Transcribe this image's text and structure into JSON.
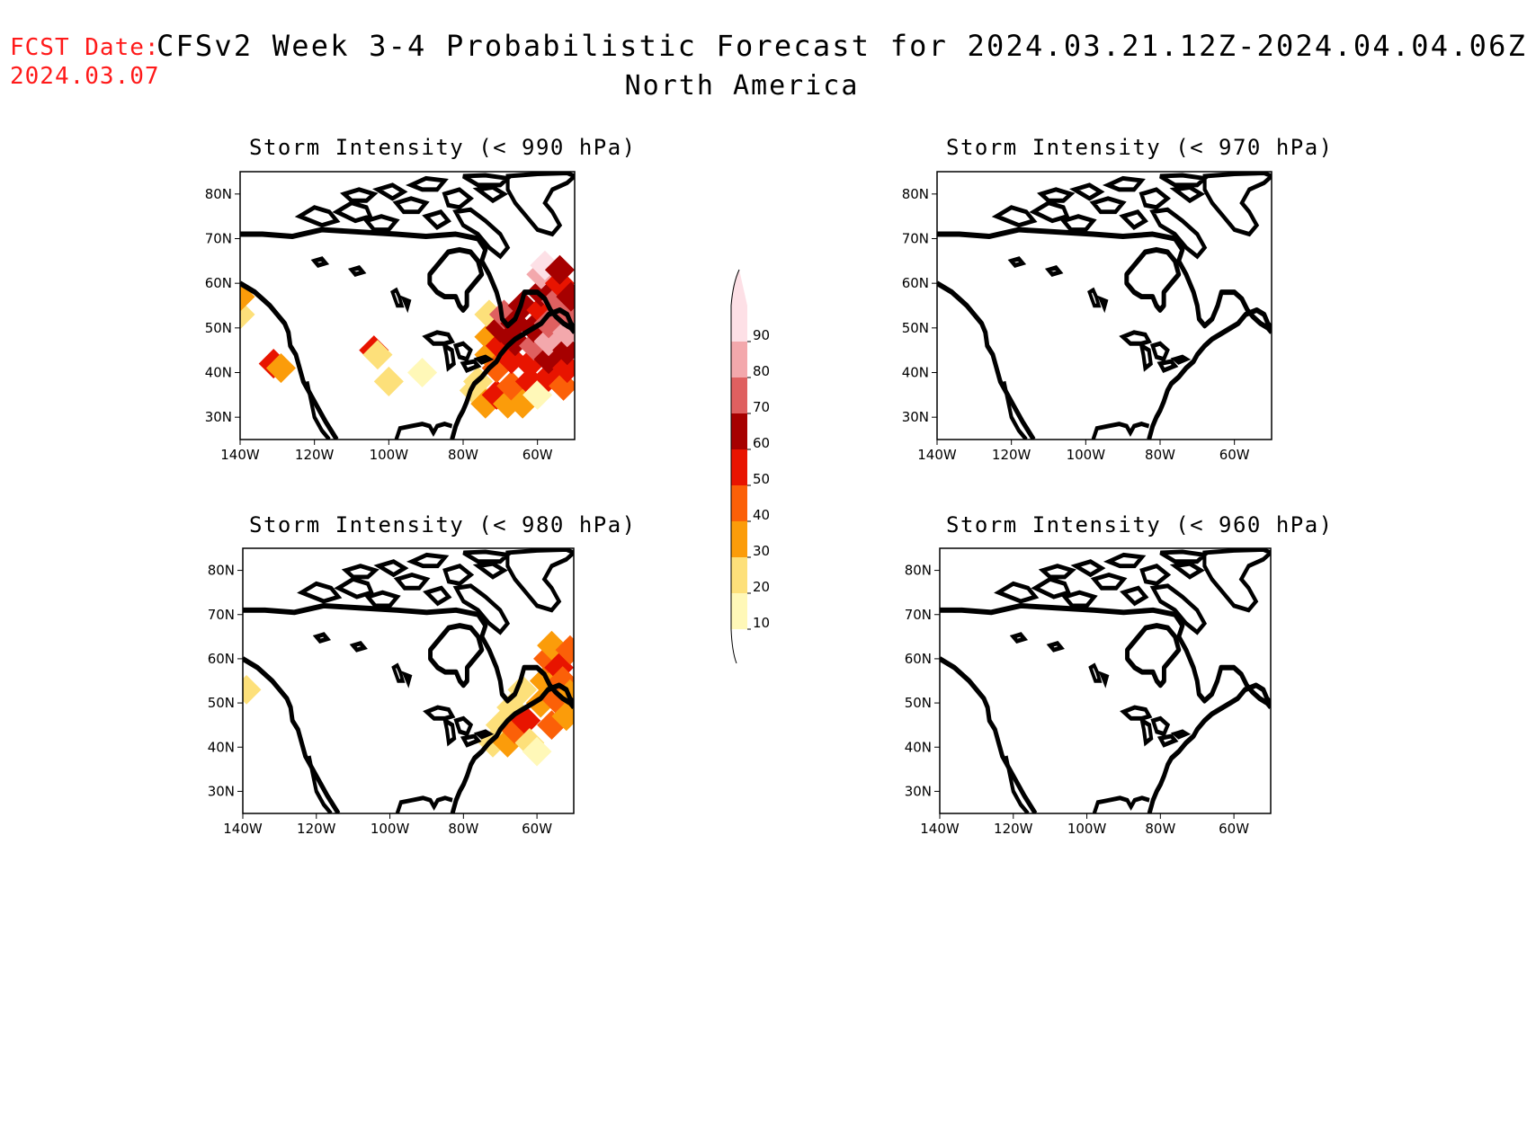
{
  "header": {
    "fcst_label": "FCST Date:",
    "fcst_date": "2024.03.07",
    "title": "CFSv2 Week 3-4 Probabilistic Forecast for 2024.03.21.12Z-2024.04.04.06Z",
    "subtitle": "North America"
  },
  "map": {
    "lon_range": [
      -140,
      -50
    ],
    "lat_range": [
      25,
      85
    ],
    "lat_ticks": [
      30,
      40,
      50,
      60,
      70,
      80
    ],
    "lat_tick_labels": [
      "30N",
      "40N",
      "50N",
      "60N",
      "70N",
      "80N"
    ],
    "lon_ticks": [
      -140,
      -120,
      -100,
      -80,
      -60
    ],
    "lon_tick_labels": [
      "140W",
      "120W",
      "100W",
      "80W",
      "60W"
    ]
  },
  "colorbar": {
    "levels": [
      10,
      20,
      30,
      40,
      50,
      60,
      70,
      80,
      90
    ],
    "labels": [
      "10",
      "20",
      "30",
      "40",
      "50",
      "60",
      "70",
      "80",
      "90"
    ],
    "colors": [
      "#fff8b8",
      "#fde07a",
      "#fb9c0a",
      "#fb6008",
      "#e81400",
      "#a60000",
      "#df6060",
      "#f3a8ac",
      "#fde0e6"
    ]
  },
  "panels": [
    {
      "id": "990",
      "title": "Storm Intensity (< 990 hPa)",
      "cells": [
        [
          -140,
          53,
          20
        ],
        [
          -140,
          57,
          30
        ],
        [
          -131,
          42,
          50
        ],
        [
          -129,
          41,
          30
        ],
        [
          -104,
          45,
          50
        ],
        [
          -103,
          44,
          20
        ],
        [
          -100,
          38,
          20
        ],
        [
          -91,
          40,
          10
        ],
        [
          -77,
          36,
          20
        ],
        [
          -76,
          38,
          20
        ],
        [
          -74,
          33,
          30
        ],
        [
          -73,
          44,
          30
        ],
        [
          -73,
          48,
          30
        ],
        [
          -73,
          53,
          20
        ],
        [
          -71,
          35,
          50
        ],
        [
          -71,
          41,
          40
        ],
        [
          -70,
          46,
          50
        ],
        [
          -70,
          50,
          60
        ],
        [
          -69,
          53,
          70
        ],
        [
          -68,
          33,
          30
        ],
        [
          -67,
          37,
          40
        ],
        [
          -67,
          43,
          50
        ],
        [
          -66,
          47,
          60
        ],
        [
          -66,
          51,
          60
        ],
        [
          -64,
          55,
          60
        ],
        [
          -64,
          33,
          30
        ],
        [
          -62,
          38,
          50
        ],
        [
          -62,
          42,
          50
        ],
        [
          -61,
          46,
          70
        ],
        [
          -61,
          50,
          60
        ],
        [
          -59,
          54,
          50
        ],
        [
          -59,
          58,
          60
        ],
        [
          -59,
          62,
          80
        ],
        [
          -58,
          64,
          90
        ],
        [
          -60,
          35,
          10
        ],
        [
          -57,
          39,
          50
        ],
        [
          -57,
          43,
          60
        ],
        [
          -57,
          47,
          80
        ],
        [
          -57,
          51,
          70
        ],
        [
          -55,
          56,
          70
        ],
        [
          -54,
          60,
          50
        ],
        [
          -54,
          63,
          60
        ],
        [
          -53,
          37,
          40
        ],
        [
          -52,
          41,
          50
        ],
        [
          -52,
          45,
          60
        ],
        [
          -52,
          49,
          80
        ],
        [
          -52,
          53,
          70
        ],
        [
          -51,
          57,
          60
        ]
      ]
    },
    {
      "id": "970",
      "title": "Storm Intensity (< 970 hPa)",
      "cells": []
    },
    {
      "id": "980",
      "title": "Storm Intensity (< 980 hPa)",
      "cells": [
        [
          -139,
          53,
          20
        ],
        [
          -72,
          41,
          20
        ],
        [
          -70,
          45,
          20
        ],
        [
          -68,
          41,
          30
        ],
        [
          -67,
          49,
          20
        ],
        [
          -66,
          44,
          40
        ],
        [
          -64,
          53,
          20
        ],
        [
          -63,
          46,
          50
        ],
        [
          -62,
          41,
          20
        ],
        [
          -60,
          39,
          10
        ],
        [
          -59,
          50,
          30
        ],
        [
          -58,
          55,
          30
        ],
        [
          -57,
          60,
          40
        ],
        [
          -56,
          45,
          40
        ],
        [
          -56,
          63,
          30
        ],
        [
          -55,
          51,
          40
        ],
        [
          -54,
          58,
          50
        ],
        [
          -53,
          55,
          40
        ],
        [
          -52,
          47,
          30
        ],
        [
          -51,
          62,
          40
        ],
        [
          -51,
          52,
          30
        ]
      ]
    },
    {
      "id": "960",
      "title": "Storm Intensity (< 960 hPa)",
      "cells": []
    }
  ]
}
